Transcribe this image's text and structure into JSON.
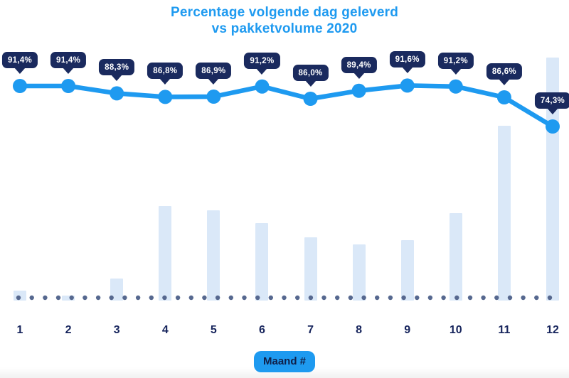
{
  "title": {
    "line1": "Percentage volgende dag geleverd",
    "line2": "vs pakketvolume 2020"
  },
  "x_axis": {
    "label": "Maand #",
    "categories": [
      "1",
      "2",
      "3",
      "4",
      "5",
      "6",
      "7",
      "8",
      "9",
      "10",
      "11",
      "12"
    ]
  },
  "chart_data": {
    "type": "line+bar",
    "title": "Percentage volgende dag geleverd vs pakketvolume 2020",
    "xlabel": "Maand #",
    "categories": [
      1,
      2,
      3,
      4,
      5,
      6,
      7,
      8,
      9,
      10,
      11,
      12
    ],
    "series": [
      {
        "name": "Percentage volgende dag geleverd",
        "type": "line",
        "unit": "%",
        "values": [
          91.4,
          91.4,
          88.3,
          86.8,
          86.9,
          91.2,
          86.0,
          89.4,
          91.6,
          91.2,
          86.6,
          74.3
        ],
        "labels": [
          "91,4%",
          "91,4%",
          "88,3%",
          "86,8%",
          "86,9%",
          "91,2%",
          "86,0%",
          "89,4%",
          "91,6%",
          "91,2%",
          "86,6%",
          "74,3%"
        ]
      },
      {
        "name": "Pakketvolume 2020",
        "type": "bar",
        "unit": "relative volume (max month = 100)",
        "values": [
          4,
          2,
          9,
          39,
          37,
          32,
          26,
          23,
          25,
          36,
          72,
          100
        ]
      }
    ],
    "legend": "none",
    "grid": "off",
    "baseline": "dotted"
  },
  "colors": {
    "accent_blue": "#1E9AF0",
    "navy": "#1A2A5E",
    "axis_text": "#16245C",
    "bar_fill": "#DAE8F8",
    "dot_slate": "#56688F",
    "tooltip_text": "#FFFFFF",
    "badge_text": "#102049",
    "background": "#FFFFFF"
  }
}
